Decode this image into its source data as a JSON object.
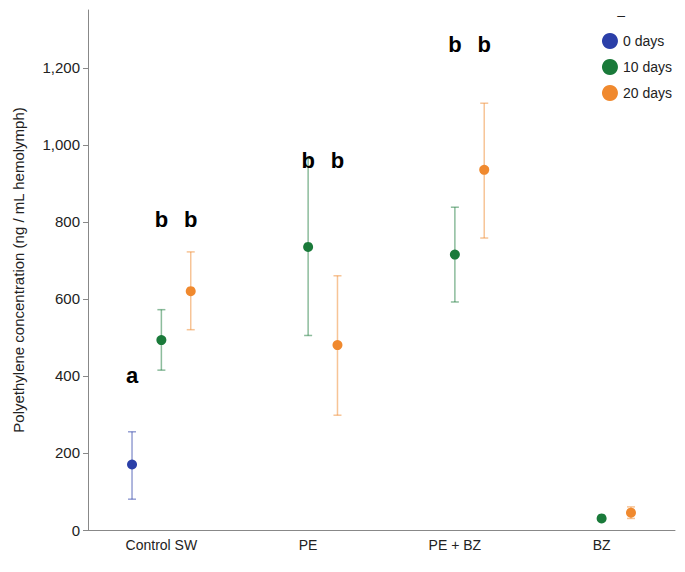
{
  "chart_data": {
    "type": "scatter",
    "y_label": "Polyethylene concentration (ng / mL hemolymph)",
    "categories": [
      "Control SW",
      "PE",
      "PE + BZ",
      "BZ"
    ],
    "series": [
      {
        "name": "0 days",
        "color": "#2b3fa8",
        "values": [
          170,
          null,
          null,
          null
        ],
        "errors": [
          [
            80,
            255
          ],
          null,
          null,
          null
        ]
      },
      {
        "name": "10 days",
        "color": "#1a7a3a",
        "values": [
          493,
          735,
          715,
          30
        ],
        "errors": [
          [
            415,
            572
          ],
          [
            505,
            965
          ],
          [
            592,
            838
          ],
          [
            25,
            35
          ]
        ]
      },
      {
        "name": "20 days",
        "color": "#f0892e",
        "values": [
          620,
          480,
          935,
          45
        ],
        "errors": [
          [
            520,
            722
          ],
          [
            298,
            660
          ],
          [
            758,
            1108
          ],
          [
            30,
            60
          ]
        ]
      }
    ],
    "annotations": [
      {
        "text": "a",
        "category": "Control SW",
        "series": "0 days",
        "y": 400
      },
      {
        "text": "b",
        "category": "Control SW",
        "series": "10 days",
        "y": 805
      },
      {
        "text": "b",
        "category": "Control SW",
        "series": "20 days",
        "y": 805
      },
      {
        "text": "b",
        "category": "PE",
        "series": "10 days",
        "y": 960
      },
      {
        "text": "b",
        "category": "PE",
        "series": "20 days",
        "y": 960
      },
      {
        "text": "b",
        "category": "PE + BZ",
        "series": "10 days",
        "y": 1260
      },
      {
        "text": "b",
        "category": "PE + BZ",
        "series": "20 days",
        "y": 1260
      }
    ],
    "legend_title": "–",
    "ylim": [
      0,
      1350
    ],
    "yticks": [
      0,
      200,
      400,
      600,
      800,
      {
        "value": 1000,
        "label": "1,000"
      },
      {
        "value": 1200,
        "label": "1,200"
      }
    ],
    "grid": false,
    "legend": "upper right"
  }
}
